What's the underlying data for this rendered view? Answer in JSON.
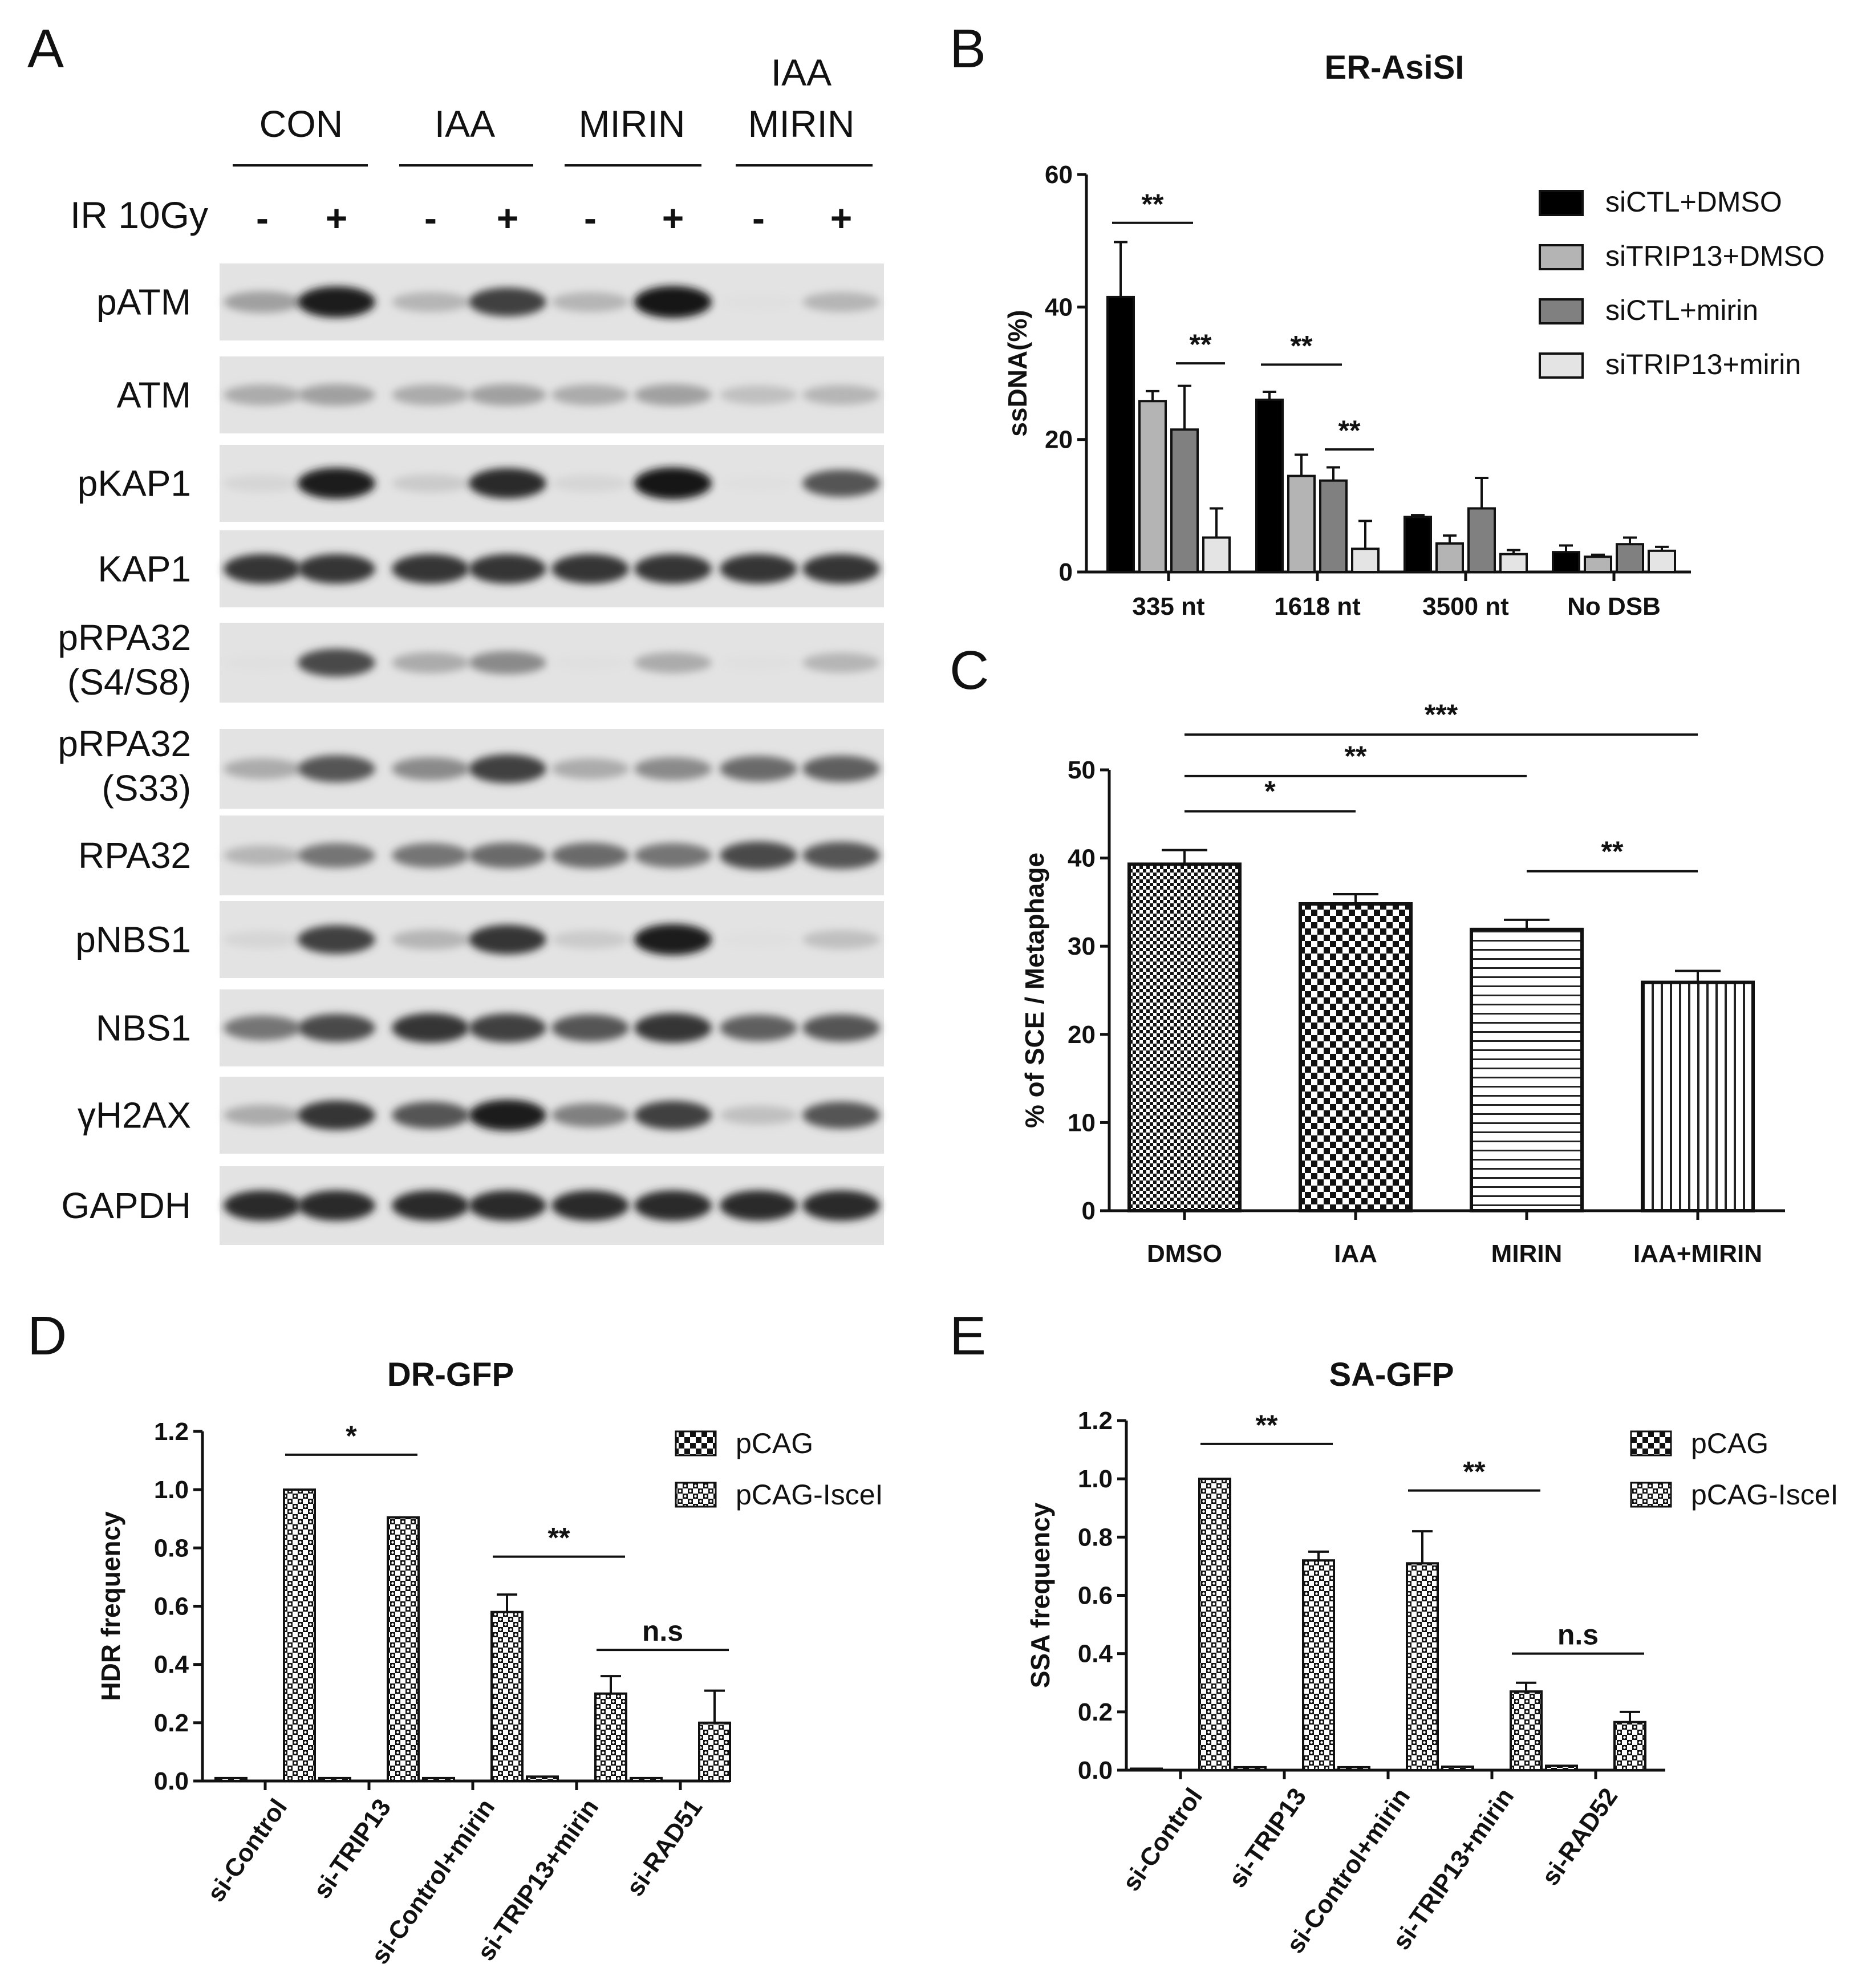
{
  "panels": [
    {
      "letter": "A"
    },
    {
      "letter": "B"
    },
    {
      "letter": "C"
    },
    {
      "letter": "D"
    },
    {
      "letter": "E"
    }
  ],
  "western_blot": {
    "groups": [
      {
        "lines": [
          "CON"
        ]
      },
      {
        "lines": [
          "IAA"
        ]
      },
      {
        "lines": [
          "MIRIN"
        ]
      },
      {
        "lines": [
          "IAA",
          "MIRIN"
        ]
      }
    ],
    "treatment_label": "IR 10Gy",
    "lane_signs": [
      "-",
      "+",
      "-",
      "+",
      "-",
      "+",
      "-",
      "+"
    ],
    "rows": [
      {
        "lines": [
          "pATM"
        ],
        "intensity": [
          0.35,
          0.95,
          0.25,
          0.8,
          0.25,
          1.0,
          0.05,
          0.25
        ]
      },
      {
        "lines": [
          "ATM"
        ],
        "intensity": [
          0.3,
          0.35,
          0.3,
          0.35,
          0.3,
          0.35,
          0.2,
          0.25
        ]
      },
      {
        "lines": [
          "pKAP1"
        ],
        "intensity": [
          0.1,
          0.95,
          0.15,
          0.9,
          0.1,
          1.0,
          0.05,
          0.7
        ]
      },
      {
        "lines": [
          "KAP1"
        ],
        "intensity": [
          0.85,
          0.85,
          0.85,
          0.85,
          0.85,
          0.85,
          0.85,
          0.85
        ]
      },
      {
        "lines": [
          "pRPA32",
          "(S4/S8)"
        ],
        "intensity": [
          0.05,
          0.75,
          0.3,
          0.45,
          0.05,
          0.3,
          0.05,
          0.25
        ]
      },
      {
        "lines": [
          "pRPA32",
          "(S33)"
        ],
        "intensity": [
          0.3,
          0.7,
          0.45,
          0.8,
          0.3,
          0.45,
          0.6,
          0.65
        ]
      },
      {
        "lines": [
          "RPA32"
        ],
        "intensity": [
          0.25,
          0.55,
          0.55,
          0.6,
          0.6,
          0.55,
          0.75,
          0.7
        ]
      },
      {
        "lines": [
          "pNBS1"
        ],
        "intensity": [
          0.1,
          0.8,
          0.25,
          0.85,
          0.15,
          0.95,
          0.05,
          0.2
        ]
      },
      {
        "lines": [
          "NBS1"
        ],
        "intensity": [
          0.55,
          0.75,
          0.85,
          0.8,
          0.7,
          0.85,
          0.65,
          0.7
        ]
      },
      {
        "lines": [
          "γH2AX"
        ],
        "intensity": [
          0.3,
          0.85,
          0.7,
          0.95,
          0.5,
          0.8,
          0.2,
          0.7
        ]
      },
      {
        "lines": [
          "GAPDH"
        ],
        "intensity": [
          0.9,
          0.9,
          0.9,
          0.9,
          0.9,
          0.9,
          0.9,
          0.9
        ]
      }
    ]
  },
  "chart_data": [
    {
      "id": "B",
      "type": "bar",
      "title": "ER-AsiSI",
      "ylabel": "ssDNA(%)",
      "ylim": [
        0,
        60
      ],
      "yticks": [
        "0",
        "20",
        "40",
        "60"
      ],
      "categories": [
        "335 nt",
        "1618 nt",
        "3500 nt",
        "No DSB"
      ],
      "series": [
        {
          "name": "siCTL+DMSO",
          "color": "#000000",
          "values": [
            41.5,
            26,
            8.3,
            3
          ],
          "errors": [
            8.3,
            1.2,
            0.3,
            1.0
          ]
        },
        {
          "name": "siTRIP13+DMSO",
          "color": "#b4b4b4",
          "values": [
            25.8,
            14.5,
            4.3,
            2.3
          ],
          "errors": [
            1.5,
            3.2,
            1.2,
            0.3
          ]
        },
        {
          "name": "siCTL+mirin",
          "color": "#808080",
          "values": [
            21.5,
            13.8,
            9.6,
            4.2
          ],
          "errors": [
            6.6,
            2.0,
            4.6,
            1.0
          ]
        },
        {
          "name": "siTRIP13+mirin",
          "color": "#e4e4e4",
          "values": [
            5.2,
            3.5,
            2.7,
            3.2
          ],
          "errors": [
            4.4,
            4.2,
            0.6,
            0.6
          ]
        }
      ],
      "significance": [
        {
          "label": "**",
          "from": [
            0,
            0
          ],
          "to": [
            0,
            2
          ],
          "y": 52.7
        },
        {
          "label": "**",
          "from": [
            0,
            2
          ],
          "to": [
            0,
            3
          ],
          "y": 31.5
        },
        {
          "label": "**",
          "from": [
            1,
            0
          ],
          "to": [
            1,
            2
          ],
          "y": 31.3
        },
        {
          "label": "**",
          "from": [
            1,
            2
          ],
          "to": [
            1,
            3
          ],
          "y": 18.5
        }
      ],
      "legend_position": "top-right"
    },
    {
      "id": "C",
      "type": "bar",
      "ylabel": "% of SCE / Metaphage",
      "ylim": [
        0,
        50
      ],
      "yticks": [
        "0",
        "10",
        "20",
        "30",
        "40",
        "50"
      ],
      "categories": [
        "DMSO",
        "IAA",
        "MIRIN",
        "IAA+MIRIN"
      ],
      "values": [
        39.3,
        34.8,
        31.9,
        25.9
      ],
      "errors": [
        1.6,
        1.1,
        1.1,
        1.3
      ],
      "patterns": [
        "dense-checker",
        "checker",
        "horizontal-lines",
        "vertical-lines"
      ],
      "significance": [
        {
          "label": "*",
          "from": 0,
          "to": 1,
          "y": 45.3
        },
        {
          "label": "**",
          "from": 0,
          "to": 2,
          "y": 49.3
        },
        {
          "label": "***",
          "from": 0,
          "to": 3,
          "y": 54.0
        },
        {
          "label": "**",
          "from": 2,
          "to": 3,
          "y": 38.5
        }
      ]
    },
    {
      "id": "D",
      "type": "bar",
      "title": "DR-GFP",
      "ylabel": "HDR frequency",
      "ylim": [
        0,
        1.2
      ],
      "yticks": [
        "0.0",
        "0.2",
        "0.4",
        "0.6",
        "0.8",
        "1.0",
        "1.2"
      ],
      "categories": [
        "si-Control",
        "si-TRIP13",
        "si-Control+mirin",
        "si-TRIP13+mirin",
        "si-RAD51"
      ],
      "series": [
        {
          "name": "pCAG",
          "values": [
            0.01,
            0.01,
            0.01,
            0.015,
            0.01
          ],
          "errors": [
            0,
            0,
            0,
            0,
            0
          ]
        },
        {
          "name": "pCAG-IsceI",
          "values": [
            1.0,
            0.905,
            0.58,
            0.3,
            0.2
          ],
          "errors": [
            0,
            0,
            0.06,
            0.06,
            0.11
          ]
        }
      ],
      "significance": [
        {
          "label": "*",
          "from": 0,
          "to": 1,
          "y": 1.12
        },
        {
          "label": "**",
          "from": 2,
          "to": 3,
          "y": 0.77
        },
        {
          "label": "n.s",
          "from": 3,
          "to": 4,
          "y": 0.45
        }
      ],
      "legend_position": "top-right"
    },
    {
      "id": "E",
      "type": "bar",
      "title": "SA-GFP",
      "ylabel": "SSA frequency",
      "ylim": [
        0,
        1.2
      ],
      "yticks": [
        "0.0",
        "0.2",
        "0.4",
        "0.6",
        "0.8",
        "1.0",
        "1.2"
      ],
      "categories": [
        "si-Control",
        "si-TRIP13",
        "si-Control+mirin",
        "si-TRIP13+mirin",
        "si-RAD52"
      ],
      "series": [
        {
          "name": "pCAG",
          "values": [
            0.005,
            0.01,
            0.01,
            0.012,
            0.015
          ],
          "errors": [
            0,
            0,
            0,
            0,
            0
          ]
        },
        {
          "name": "pCAG-IsceI",
          "values": [
            1.0,
            0.72,
            0.71,
            0.27,
            0.165
          ],
          "errors": [
            0,
            0.03,
            0.11,
            0.03,
            0.035
          ]
        }
      ],
      "significance": [
        {
          "label": "**",
          "from": 0,
          "to": 1,
          "y": 1.12
        },
        {
          "label": "**",
          "from": 2,
          "to": 3,
          "y": 0.96
        },
        {
          "label": "n.s",
          "from": 3,
          "to": 4,
          "y": 0.4
        }
      ],
      "legend_position": "top-right"
    }
  ]
}
